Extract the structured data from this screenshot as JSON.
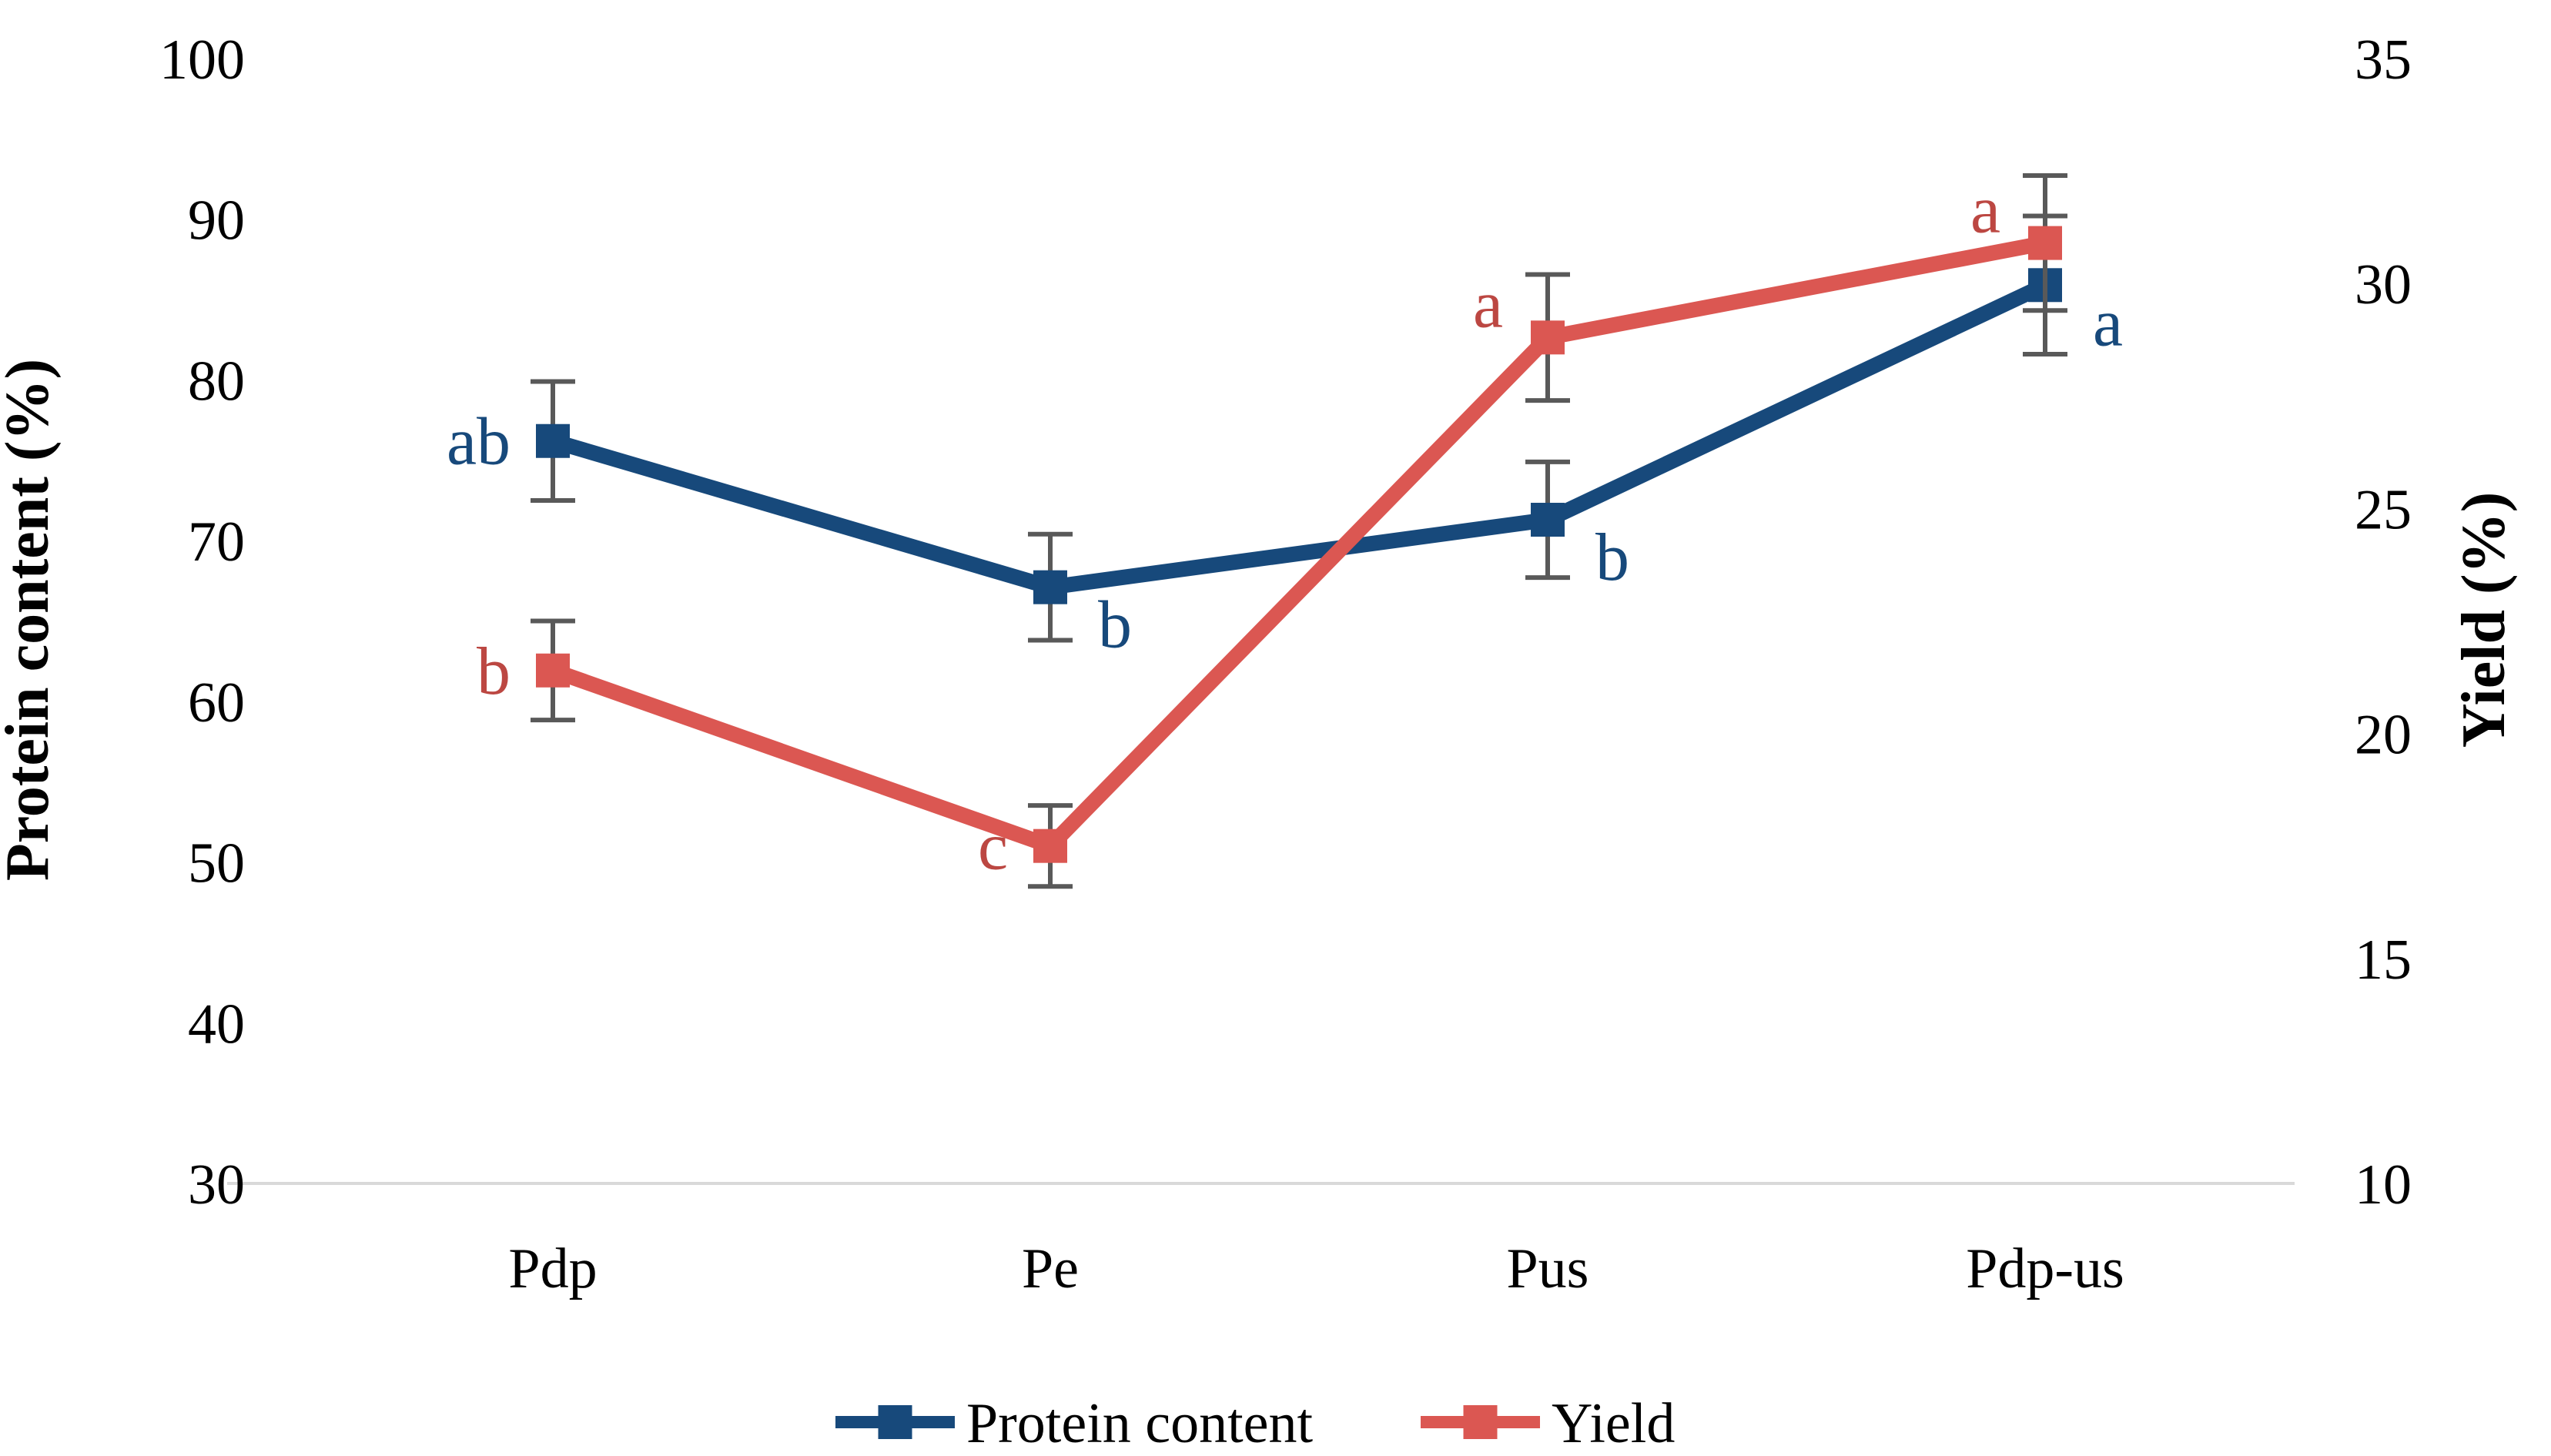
{
  "chart_data": {
    "type": "line",
    "categories": [
      "Pdp",
      "Pe",
      "Pus",
      "Pdp-us"
    ],
    "series": [
      {
        "name": "Protein content",
        "axis": "left",
        "color": "#17497B",
        "letter_color": "#17497B",
        "values": [
          76.2,
          67.1,
          71.3,
          85.9
        ],
        "errors": [
          3.7,
          3.3,
          3.6,
          4.3
        ],
        "letters": [
          "ab",
          "b",
          "b",
          "a"
        ],
        "letter_pos": [
          "left",
          "below-right",
          "below-right",
          "below-right"
        ]
      },
      {
        "name": "Yield",
        "axis": "right",
        "color": "#DB5752",
        "letter_color": "#BC4742",
        "values": [
          21.4,
          17.5,
          28.8,
          30.9
        ],
        "errors": [
          1.1,
          0.9,
          1.4,
          1.5
        ],
        "letters": [
          "b",
          "c",
          "a",
          "a"
        ],
        "letter_pos": [
          "left",
          "left",
          "above-left",
          "above-left"
        ]
      }
    ],
    "left_axis": {
      "label": "Protein content (%)",
      "min": 30,
      "max": 100,
      "ticks": [
        100,
        90,
        80,
        70,
        60,
        50,
        40,
        30
      ]
    },
    "right_axis": {
      "label": "Yield (%)",
      "min": 10,
      "max": 35,
      "ticks": [
        35,
        30,
        25,
        20,
        15,
        10
      ]
    },
    "legend": [
      "Protein content",
      "Yield"
    ],
    "grid": "baseline-only",
    "legend_position": "bottom",
    "error_bar_color": "#595959",
    "baseline_color": "#D9D9D9"
  }
}
